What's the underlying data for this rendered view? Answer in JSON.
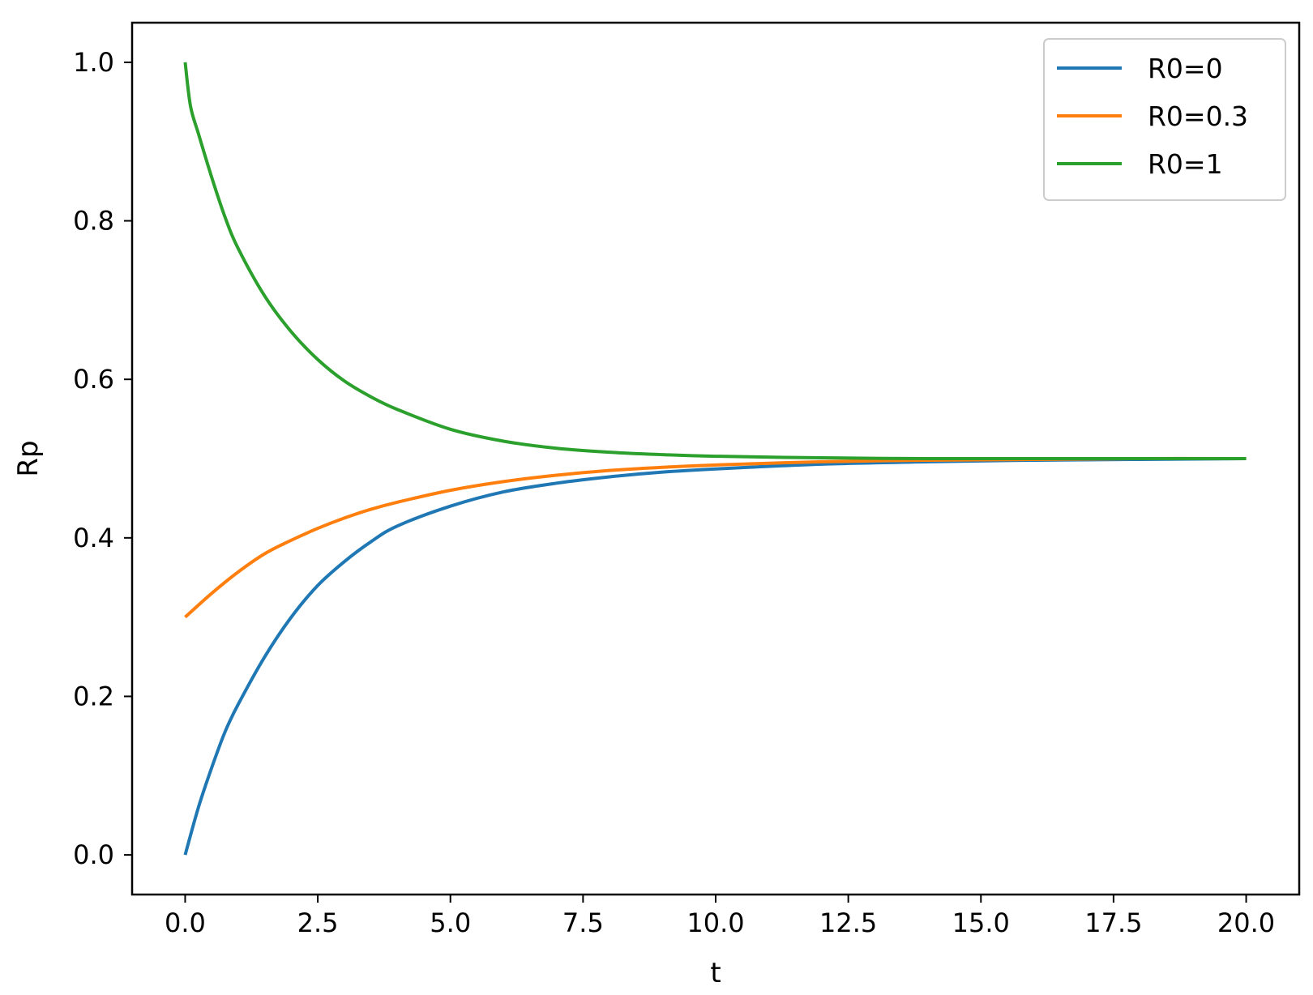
{
  "chart_data": {
    "type": "line",
    "xlabel": "t",
    "ylabel": "Rp",
    "xlim": [
      -1.0,
      21.0
    ],
    "ylim": [
      -0.05,
      1.05
    ],
    "xticks": [
      0.0,
      2.5,
      5.0,
      7.5,
      10.0,
      12.5,
      15.0,
      17.5,
      20.0
    ],
    "xtick_labels": [
      "0.0",
      "2.5",
      "5.0",
      "7.5",
      "10.0",
      "12.5",
      "15.0",
      "17.5",
      "20.0"
    ],
    "yticks": [
      0.0,
      0.2,
      0.4,
      0.6,
      0.8,
      1.0
    ],
    "ytick_labels": [
      "0.0",
      "0.2",
      "0.4",
      "0.6",
      "0.8",
      "1.0"
    ],
    "grid": false,
    "legend_position": "top-right",
    "series": [
      {
        "name": "R0=0",
        "color": "#1f77b4",
        "x": [
          0,
          0.25,
          0.5,
          0.75,
          1,
          1.5,
          2,
          2.5,
          3,
          3.5,
          4,
          5,
          6,
          7,
          8,
          9,
          10,
          12,
          14,
          16,
          18,
          20
        ],
        "y": [
          0.0,
          0.06,
          0.11,
          0.155,
          0.19,
          0.25,
          0.3,
          0.34,
          0.37,
          0.395,
          0.415,
          0.44,
          0.458,
          0.469,
          0.477,
          0.483,
          0.487,
          0.493,
          0.496,
          0.498,
          0.499,
          0.5
        ]
      },
      {
        "name": "R0=0.3",
        "color": "#ff7f0e",
        "x": [
          0,
          0.5,
          1,
          1.5,
          2,
          2.5,
          3,
          3.5,
          4,
          5,
          6,
          7,
          8,
          9,
          10,
          12,
          14,
          16,
          18,
          20
        ],
        "y": [
          0.3,
          0.33,
          0.357,
          0.38,
          0.397,
          0.412,
          0.425,
          0.436,
          0.445,
          0.46,
          0.471,
          0.479,
          0.485,
          0.489,
          0.492,
          0.496,
          0.498,
          0.499,
          0.5,
          0.5
        ]
      },
      {
        "name": "R0=1",
        "color": "#2ca02c",
        "x": [
          0,
          0.1,
          0.25,
          0.5,
          0.75,
          1,
          1.5,
          2,
          2.5,
          3,
          3.5,
          4,
          5,
          6,
          7,
          8,
          9,
          10,
          12,
          14,
          16,
          18,
          20
        ],
        "y": [
          1.0,
          0.945,
          0.91,
          0.855,
          0.805,
          0.765,
          0.705,
          0.66,
          0.625,
          0.598,
          0.578,
          0.562,
          0.537,
          0.522,
          0.513,
          0.508,
          0.505,
          0.503,
          0.501,
          0.5,
          0.5,
          0.5,
          0.5
        ]
      }
    ]
  }
}
